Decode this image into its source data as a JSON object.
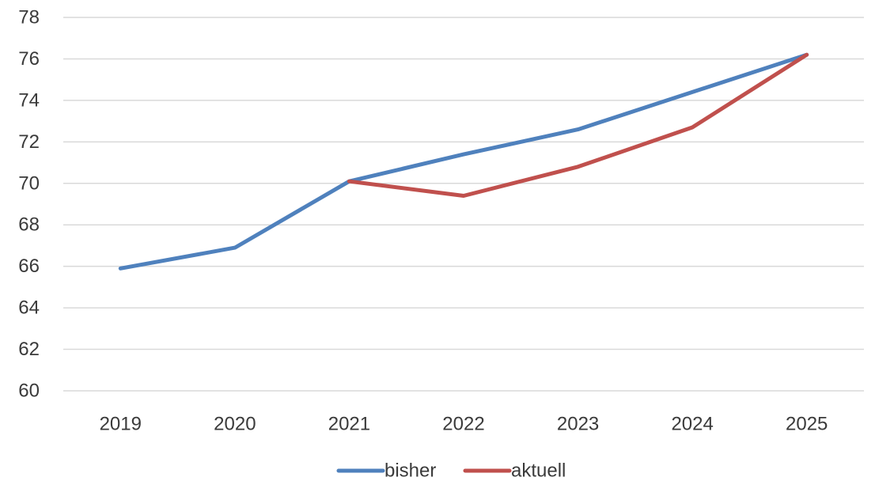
{
  "chart_data": {
    "type": "line",
    "title": "",
    "xlabel": "",
    "ylabel": "",
    "categories": [
      "2019",
      "2020",
      "2021",
      "2022",
      "2023",
      "2024",
      "2025"
    ],
    "ylim": [
      60,
      78
    ],
    "yticks": [
      60,
      62,
      64,
      66,
      68,
      70,
      72,
      74,
      76,
      78
    ],
    "grid": "horizontal",
    "legend_position": "bottom",
    "series": [
      {
        "name": "bisher",
        "color": "#4f81bd",
        "values": [
          65.9,
          66.9,
          70.1,
          71.4,
          72.6,
          74.4,
          76.2
        ]
      },
      {
        "name": "aktuell",
        "color": "#c0504d",
        "values": [
          null,
          null,
          70.1,
          69.4,
          70.8,
          72.7,
          76.2
        ]
      }
    ]
  }
}
